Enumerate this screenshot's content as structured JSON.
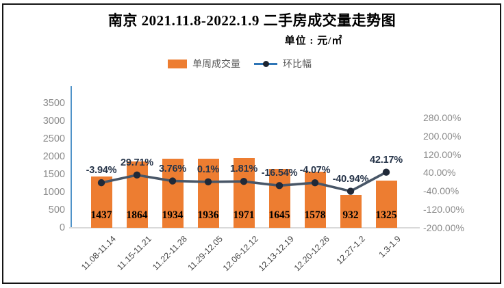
{
  "page": {
    "title": "南京 2021.11.8-2022.1.9 二手房成交量走势图",
    "subtitle": "单位 : 元/㎡"
  },
  "legend": {
    "bar_label": "单周成交量",
    "line_label": "环比幅"
  },
  "colors": {
    "bar": "#ED7D31",
    "line": "#485667",
    "marker": "#202938",
    "left_axis_line": "#4f92c8",
    "baseline": "#D9D9D9",
    "tick_text": "#8a8a8a",
    "x_label_text": "#4a4a4a",
    "pct_label_text": "#263449",
    "legend_line": "#2E75B6"
  },
  "chart_data": {
    "type": "bar",
    "title": "南京 2021.11.8-2022.1.9 二手房成交量走势图",
    "subtitle": "单位 : 元/㎡",
    "categories": [
      "11.08-11.14",
      "11.15-11.21",
      "11.22-11.28",
      "11.29-12.05",
      "12.06-12.12",
      "12.13-12.19",
      "12.20-12.26",
      "12.27-1.2",
      "1.3-1.9"
    ],
    "series": [
      {
        "name": "单周成交量",
        "type": "bar",
        "axis": "left",
        "values": [
          1437,
          1864,
          1934,
          1936,
          1971,
          1645,
          1578,
          932,
          1325
        ]
      },
      {
        "name": "环比幅",
        "type": "line",
        "axis": "right",
        "values_pct": [
          -3.94,
          29.71,
          3.76,
          0.1,
          1.81,
          -16.54,
          -4.07,
          -40.94,
          42.17
        ],
        "labels": [
          "-3.94%",
          "29.71%",
          "3.76%",
          "0.1%",
          "1.81%",
          "-16.54%",
          "-4.07%",
          "-40.94%",
          "42.17%"
        ]
      }
    ],
    "left_axis": {
      "ticks": [
        3500,
        3000,
        2500,
        2000,
        1500,
        1000,
        500,
        0
      ],
      "min": 0,
      "max": 3500,
      "tick_step": 500
    },
    "right_axis": {
      "ticks": [
        "280.00%",
        "200.00%",
        "120.00%",
        "40.00%",
        "-40.00%",
        "-120.00%",
        "-200.00%"
      ],
      "min": -200,
      "max": 280,
      "tick_step": 80
    },
    "grid": false,
    "legend_position": "top"
  }
}
